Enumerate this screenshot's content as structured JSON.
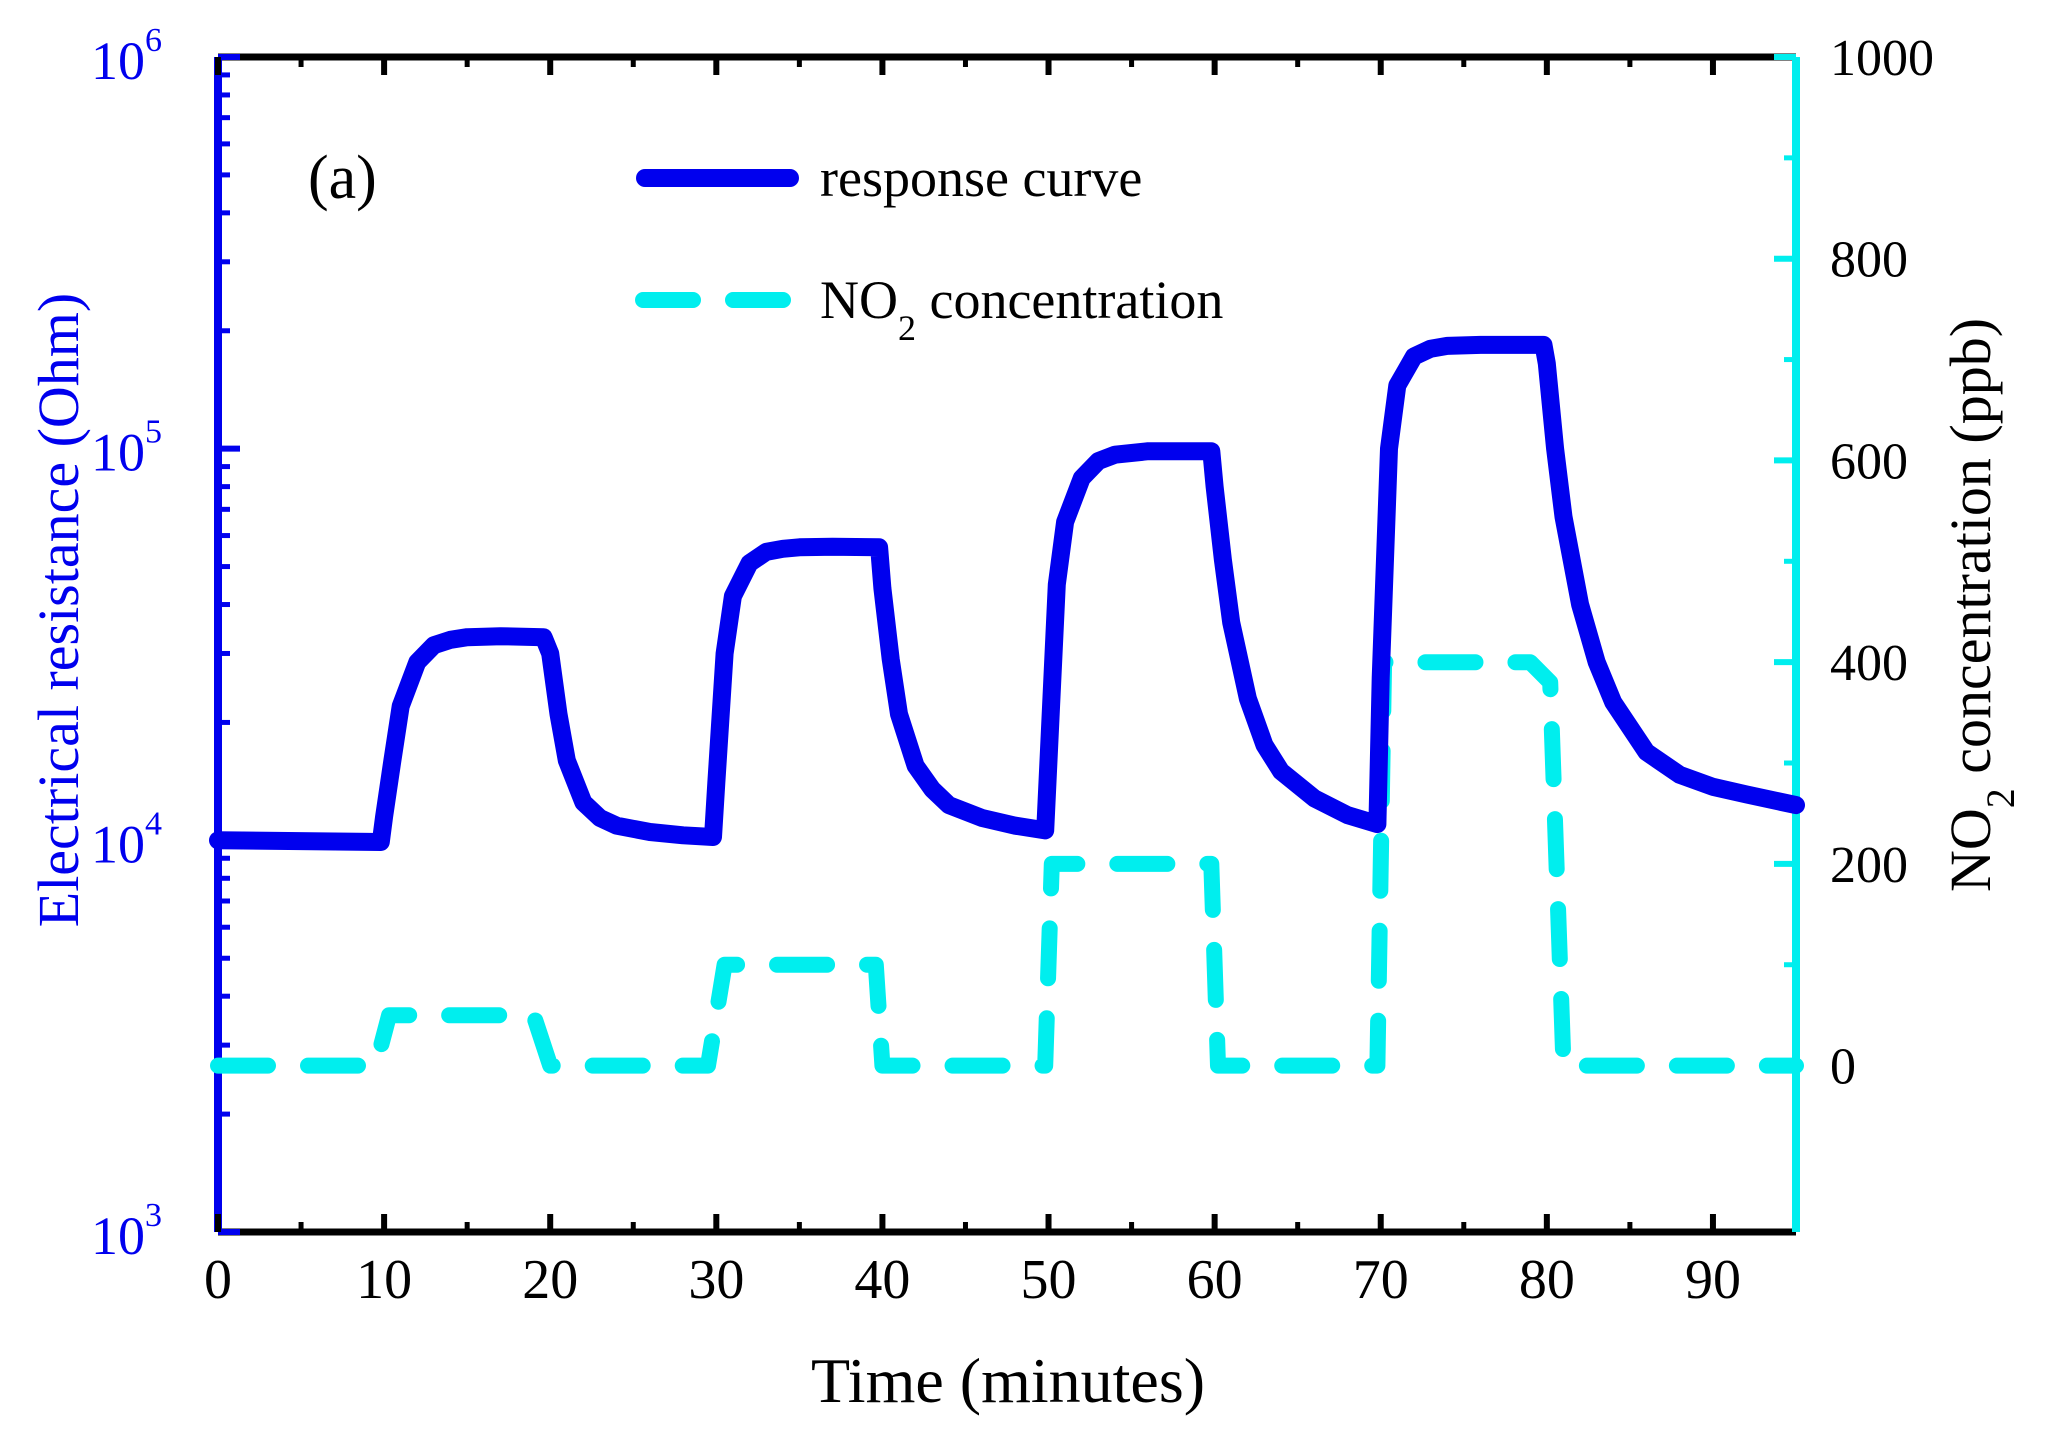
{
  "chart_data": {
    "type": "line",
    "panel_label": "(a)",
    "xlabel": "Time (minutes)",
    "ylabel_left": "Electrical resistance (Ohm)",
    "ylabel_right_prefix": "NO",
    "ylabel_right_sub": "2",
    "ylabel_right_suffix": " concentration (ppb)",
    "xlim": [
      0,
      95
    ],
    "x_ticks": [
      0,
      10,
      20,
      30,
      40,
      50,
      60,
      70,
      80,
      90
    ],
    "x_tick_labels": [
      "0",
      "10",
      "20",
      "30",
      "40",
      "50",
      "60",
      "70",
      "80",
      "90"
    ],
    "ylim_left": [
      1000,
      1000000
    ],
    "y_left_scale": "log",
    "y_left_ticks": [
      1000,
      10000,
      100000,
      1000000
    ],
    "y_left_tick_base": [
      "10",
      "10",
      "10",
      "10"
    ],
    "y_left_tick_exp": [
      "3",
      "4",
      "5",
      "6"
    ],
    "ylim_right": [
      -165,
      1000
    ],
    "y_right_ticks": [
      0,
      200,
      400,
      600,
      800,
      1000
    ],
    "y_right_tick_labels": [
      "0",
      "200",
      "400",
      "600",
      "800",
      "1000"
    ],
    "legend": {
      "position": "top-center",
      "entries": [
        {
          "label": "response curve"
        },
        {
          "label_prefix": "NO",
          "label_sub": "2",
          "label_suffix": " concentration"
        }
      ]
    },
    "series": [
      {
        "name": "response curve",
        "axis": "left",
        "color": "#0000ee",
        "style": "solid",
        "x": [
          0,
          9.8,
          10,
          10.5,
          11,
          12,
          13,
          14,
          15,
          17,
          19.6,
          20,
          20.5,
          21,
          22,
          23,
          24,
          26,
          28,
          29.8,
          30,
          30.5,
          31,
          32,
          33,
          34,
          35,
          37,
          39.8,
          40,
          40.5,
          41,
          42,
          43,
          44,
          46,
          48,
          49.8,
          50,
          50.5,
          51,
          52,
          53,
          54,
          56,
          59.8,
          60,
          60.5,
          61,
          62,
          63,
          64,
          66,
          68,
          69.8,
          70,
          70.5,
          71,
          72,
          73,
          74,
          76,
          79.8,
          80,
          80.5,
          81,
          82,
          83,
          84,
          86,
          88,
          90,
          92,
          95
        ],
        "values": [
          10000,
          9900,
          11500,
          16000,
          22000,
          28500,
          31500,
          32500,
          33000,
          33200,
          33000,
          30000,
          21000,
          16000,
          12500,
          11400,
          10900,
          10500,
          10300,
          10200,
          14000,
          30000,
          42000,
          51000,
          54500,
          55500,
          56000,
          56200,
          56000,
          44000,
          29000,
          21000,
          15500,
          13500,
          12300,
          11400,
          10900,
          10600,
          16000,
          45000,
          65000,
          84000,
          93000,
          96500,
          98500,
          98500,
          80000,
          52000,
          36000,
          23000,
          17500,
          15000,
          12800,
          11600,
          11000,
          26000,
          100000,
          145000,
          172000,
          180000,
          183000,
          184000,
          184000,
          165000,
          100000,
          67000,
          40000,
          28500,
          22500,
          16800,
          14700,
          13700,
          13100,
          12300
        ]
      },
      {
        "name": "NO2 concentration",
        "axis": "right",
        "color": "#00eeee",
        "style": "dashed",
        "x": [
          0,
          9.5,
          10.3,
          19,
          20,
          29.5,
          30.5,
          39.6,
          40,
          49.8,
          50.2,
          59.8,
          60.2,
          69.8,
          70.2,
          79,
          80.2,
          81,
          95
        ],
        "values": [
          0,
          0,
          50,
          50,
          0,
          0,
          100,
          100,
          0,
          0,
          200,
          200,
          0,
          0,
          400,
          400,
          380,
          0,
          0
        ]
      }
    ]
  }
}
